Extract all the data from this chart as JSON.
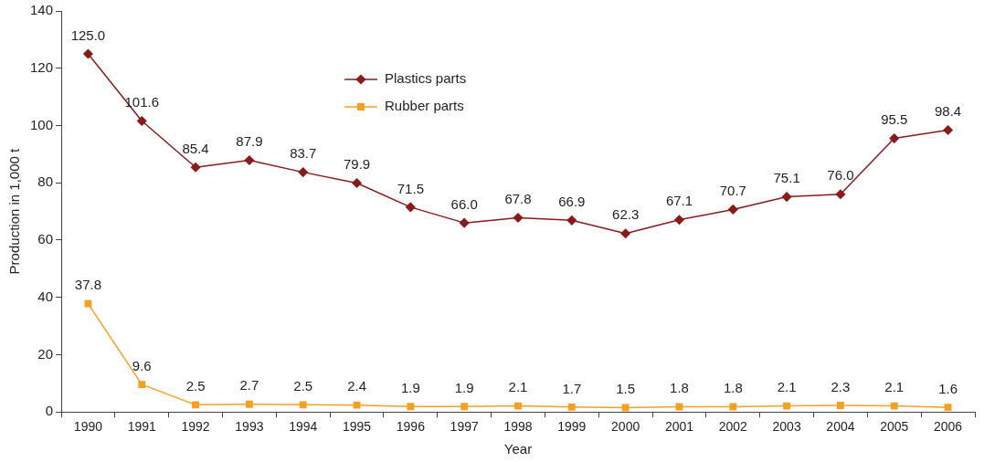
{
  "chart_data": {
    "type": "line",
    "xlabel": "Year",
    "ylabel": "Production in 1,000 t",
    "categories": [
      "1990",
      "1991",
      "1992",
      "1993",
      "1994",
      "1995",
      "1996",
      "1997",
      "1998",
      "1999",
      "2000",
      "2001",
      "2002",
      "2003",
      "2004",
      "2005",
      "2006"
    ],
    "series": [
      {
        "name": "Plastics parts",
        "color": "#8b1a1a",
        "marker": "diamond",
        "values": [
          125.0,
          101.6,
          85.4,
          87.9,
          83.7,
          79.9,
          71.5,
          66.0,
          67.8,
          66.9,
          62.3,
          67.1,
          70.7,
          75.1,
          76.0,
          95.5,
          98.4
        ],
        "value_labels": [
          "125.0",
          "101.6",
          "85.4",
          "87.9",
          "83.7",
          "79.9",
          "71.5",
          "66.0",
          "67.8",
          "66.9",
          "62.3",
          "67.1",
          "70.7",
          "75.1",
          "76.0",
          "95.5",
          "98.4"
        ]
      },
      {
        "name": "Rubber parts",
        "color": "#f5a020",
        "marker": "square",
        "values": [
          37.8,
          9.6,
          2.5,
          2.7,
          2.5,
          2.4,
          1.9,
          1.9,
          2.1,
          1.7,
          1.5,
          1.8,
          1.8,
          2.1,
          2.3,
          2.1,
          1.6
        ],
        "value_labels": [
          "37.8",
          "9.6",
          "2.5",
          "2.7",
          "2.5",
          "2.4",
          "1.9",
          "1.9",
          "2.1",
          "1.7",
          "1.5",
          "1.8",
          "1.8",
          "2.1",
          "2.3",
          "2.1",
          "1.6"
        ]
      }
    ],
    "ylim": [
      0,
      140
    ],
    "yticks": [
      0,
      20,
      40,
      60,
      80,
      100,
      120,
      140
    ],
    "grid": false,
    "legend": "top"
  }
}
